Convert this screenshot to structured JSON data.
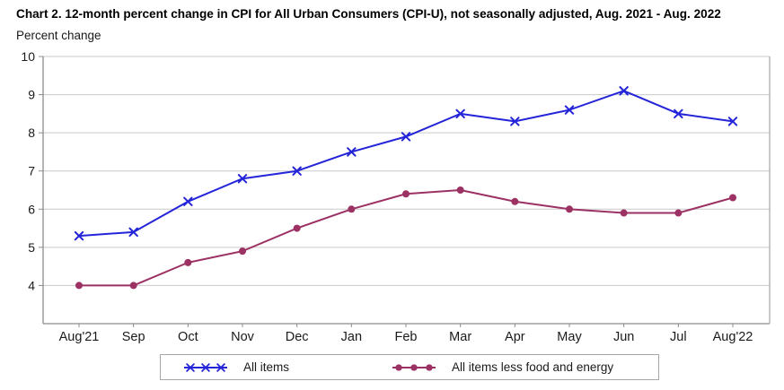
{
  "title": "Chart 2. 12-month percent change in CPI for All Urban Consumers (CPI-U), not seasonally adjusted, Aug. 2021 - Aug. 2022",
  "colors": {
    "all_items": "#2424D9",
    "core": "#9C3163",
    "gridline": "#c9c9c9",
    "axis": "#8c8c8c",
    "right_border": "#adadad",
    "tick_text": "#1a1a1a",
    "legend_border": "#a6a6a6"
  },
  "chart_data": {
    "type": "line",
    "title": "Chart 2. 12-month percent change in CPI for All Urban Consumers (CPI-U), not seasonally adjusted, Aug. 2021 - Aug. 2022",
    "ylabel": "Percent change",
    "xlabel": "",
    "categories": [
      "Aug'21",
      "Sep",
      "Oct",
      "Nov",
      "Dec",
      "Jan",
      "Feb",
      "Mar",
      "Apr",
      "May",
      "Jun",
      "Jul",
      "Aug'22"
    ],
    "series": [
      {
        "name": "All items",
        "color": "#2424D9",
        "marker": "x-cross",
        "values": [
          5.3,
          5.4,
          6.2,
          6.8,
          7.0,
          7.5,
          7.9,
          8.5,
          8.3,
          8.6,
          9.1,
          8.5,
          8.3
        ]
      },
      {
        "name": "All items less food and energy",
        "color": "#9C3163",
        "marker": "circle",
        "values": [
          4.0,
          4.0,
          4.6,
          4.9,
          5.5,
          6.0,
          6.4,
          6.5,
          6.2,
          6.0,
          5.9,
          5.9,
          6.3
        ]
      }
    ],
    "yticks": [
      4,
      5,
      6,
      7,
      8,
      9,
      10
    ],
    "ylim": [
      3,
      10
    ],
    "grid": "horizontal",
    "legend_position": "bottom"
  }
}
